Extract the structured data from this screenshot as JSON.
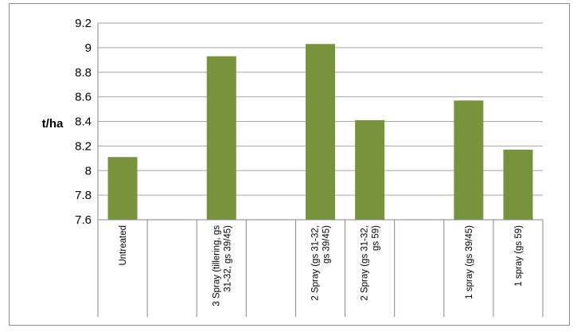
{
  "chart_data": {
    "type": "bar",
    "title": "",
    "xlabel": "",
    "ylabel": "t/ha",
    "ylim": [
      7.6,
      9.2
    ],
    "ytick_step": 0.2,
    "yticks": [
      "7.6",
      "7.8",
      "8",
      "8.2",
      "8.4",
      "8.6",
      "8.8",
      "9",
      "9.2"
    ],
    "grid": "horizontal",
    "legend": "none",
    "bar_color": "#77933c",
    "categories": [
      [
        "Untreated"
      ],
      [],
      [
        "3 Spray (tillering, gs",
        "31-32, gs 39/45)"
      ],
      [],
      [
        "2 Spray (gs 31-32,",
        "gs 39/45)"
      ],
      [
        "2 Spray (gs 31-32,",
        "gs 59)"
      ],
      [],
      [
        "1 spray (gs 39/45)"
      ],
      [
        "1 spray (gs 59)"
      ]
    ],
    "values": [
      8.11,
      null,
      8.93,
      null,
      9.03,
      8.41,
      null,
      8.57,
      8.17
    ]
  }
}
